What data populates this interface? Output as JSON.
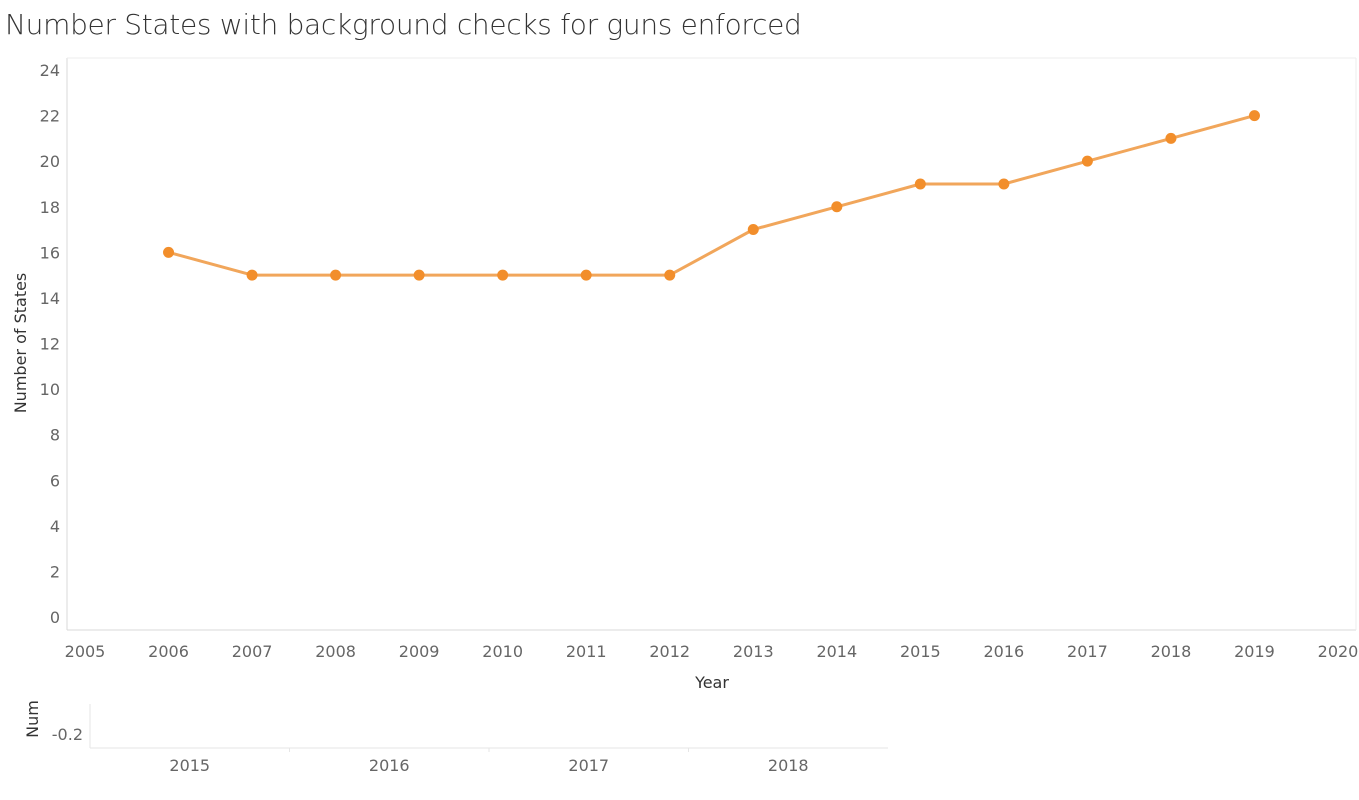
{
  "chart_data": [
    {
      "type": "line",
      "title": "Number States with background checks for guns enforced",
      "xlabel": "Year",
      "ylabel": "Number of States",
      "xlim": [
        2005,
        2020
      ],
      "ylim": [
        0,
        24
      ],
      "xticks": [
        "2005",
        "2006",
        "2007",
        "2008",
        "2009",
        "2010",
        "2011",
        "2012",
        "2013",
        "2014",
        "2015",
        "2016",
        "2017",
        "2018",
        "2019",
        "2020"
      ],
      "yticks": [
        "0",
        "2",
        "4",
        "6",
        "8",
        "10",
        "12",
        "14",
        "16",
        "18",
        "20",
        "22",
        "24"
      ],
      "grid": false,
      "series": [
        {
          "color": "#f28e2b",
          "line_color": "#f1a65b",
          "x": [
            2006,
            2007,
            2008,
            2009,
            2010,
            2011,
            2012,
            2013,
            2014,
            2015,
            2016,
            2017,
            2018,
            2019
          ],
          "values": [
            16,
            15,
            15,
            15,
            15,
            15,
            15,
            17,
            18,
            19,
            19,
            20,
            21,
            22
          ]
        }
      ]
    },
    {
      "type": "line",
      "ylabel": "Num",
      "categories": [
        "2015",
        "2016",
        "2017",
        "2018"
      ],
      "yticks": [
        "-0.2"
      ],
      "series": []
    }
  ]
}
